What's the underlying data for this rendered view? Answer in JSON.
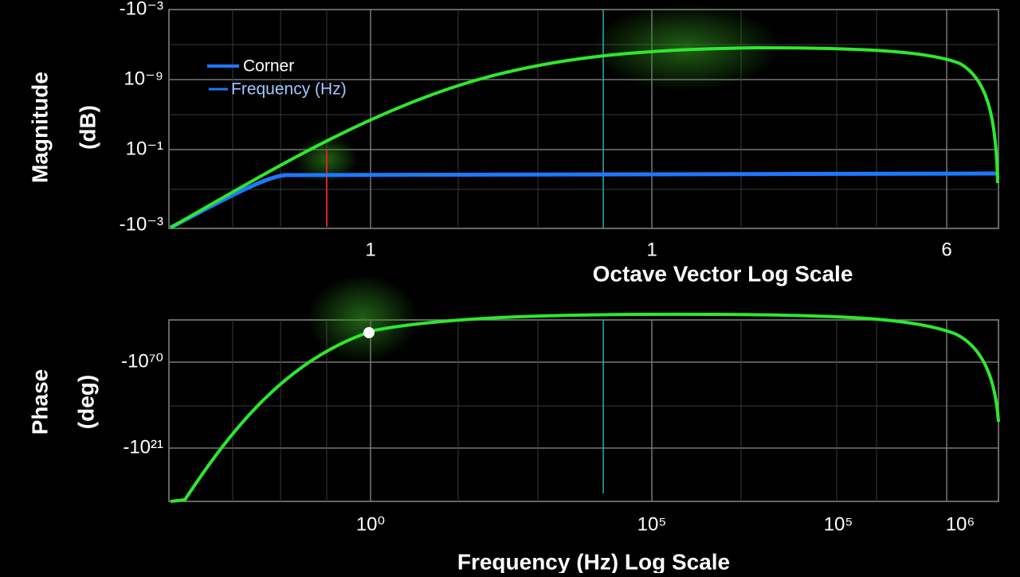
{
  "magnitude_panel": {
    "y_label": [
      "Magnitude",
      "(dB)"
    ],
    "y_ticks": [
      "-10⁻³",
      "10⁻⁹",
      "10⁻¹",
      "-10⁻³"
    ],
    "x_ticks": [
      "1",
      "1",
      "6"
    ],
    "x_label": "Octave Vector Log Scale",
    "legend": [
      "Corner",
      "Frequency (Hz)"
    ]
  },
  "phase_panel": {
    "y_label": [
      "Phase",
      "(deg)"
    ],
    "y_ticks": [
      "-10⁷⁰",
      "-10²¹"
    ],
    "x_ticks": [
      "10⁰",
      "10⁵",
      "10⁵",
      "10⁶"
    ],
    "x_label": "Frequency (Hz) Log Scale"
  }
}
